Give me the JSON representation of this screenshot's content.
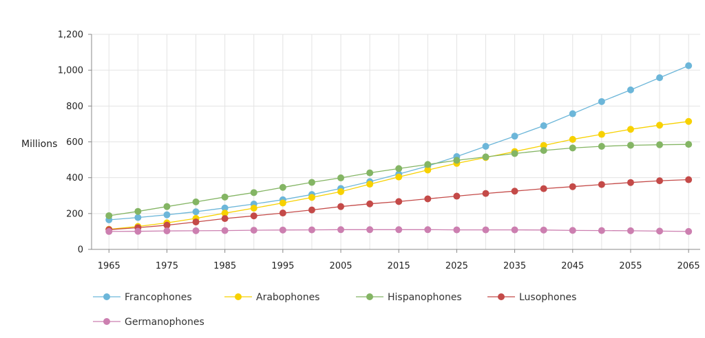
{
  "chart_data": {
    "type": "line",
    "ylabel": "Millions",
    "xlabel": "",
    "ylim": [
      0,
      1200
    ],
    "yticks": [
      0,
      200,
      400,
      600,
      800,
      1000,
      1200
    ],
    "ytick_labels": [
      "0",
      "200",
      "400",
      "600",
      "800",
      "1,000",
      "1,200"
    ],
    "xlim": [
      1962,
      2067
    ],
    "xticks": [
      1965,
      1975,
      1985,
      1995,
      2005,
      2015,
      2025,
      2035,
      2045,
      2055,
      2065
    ],
    "xtick_labels": [
      "1965",
      "1975",
      "1985",
      "1995",
      "2005",
      "2015",
      "2025",
      "2035",
      "2045",
      "2055",
      "2065"
    ],
    "grid": true,
    "legend_position": "bottom",
    "x": [
      1965,
      1970,
      1975,
      1980,
      1985,
      1990,
      1995,
      2000,
      2005,
      2010,
      2015,
      2020,
      2025,
      2030,
      2035,
      2040,
      2045,
      2050,
      2055,
      2060,
      2065
    ],
    "series": [
      {
        "name": "Francophones",
        "color": "#6cb6d9",
        "values": [
          165,
          178,
          193,
          210,
          231,
          253,
          277,
          306,
          340,
          378,
          420,
          465,
          518,
          575,
          632,
          690,
          757,
          825,
          890,
          958,
          1025
        ]
      },
      {
        "name": "Arabophones",
        "color": "#f7d100",
        "values": [
          112,
          128,
          148,
          173,
          202,
          230,
          259,
          290,
          322,
          364,
          404,
          443,
          480,
          513,
          546,
          580,
          614,
          642,
          670,
          693,
          714
        ]
      },
      {
        "name": "Hispanophones",
        "color": "#84b564",
        "values": [
          188,
          212,
          239,
          265,
          292,
          317,
          346,
          374,
          399,
          427,
          451,
          474,
          497,
          516,
          535,
          552,
          566,
          575,
          581,
          584,
          586
        ]
      },
      {
        "name": "Lusophones",
        "color": "#c44a48",
        "values": [
          110,
          121,
          135,
          153,
          172,
          187,
          203,
          220,
          239,
          254,
          267,
          282,
          297,
          312,
          325,
          339,
          350,
          362,
          373,
          383,
          389
        ]
      },
      {
        "name": "Germanophones",
        "color": "#cc7fb0",
        "values": [
          100,
          101,
          103,
          104,
          105,
          107,
          108,
          109,
          110,
          110,
          110,
          110,
          109,
          109,
          109,
          108,
          106,
          105,
          104,
          102,
          100
        ]
      }
    ]
  }
}
